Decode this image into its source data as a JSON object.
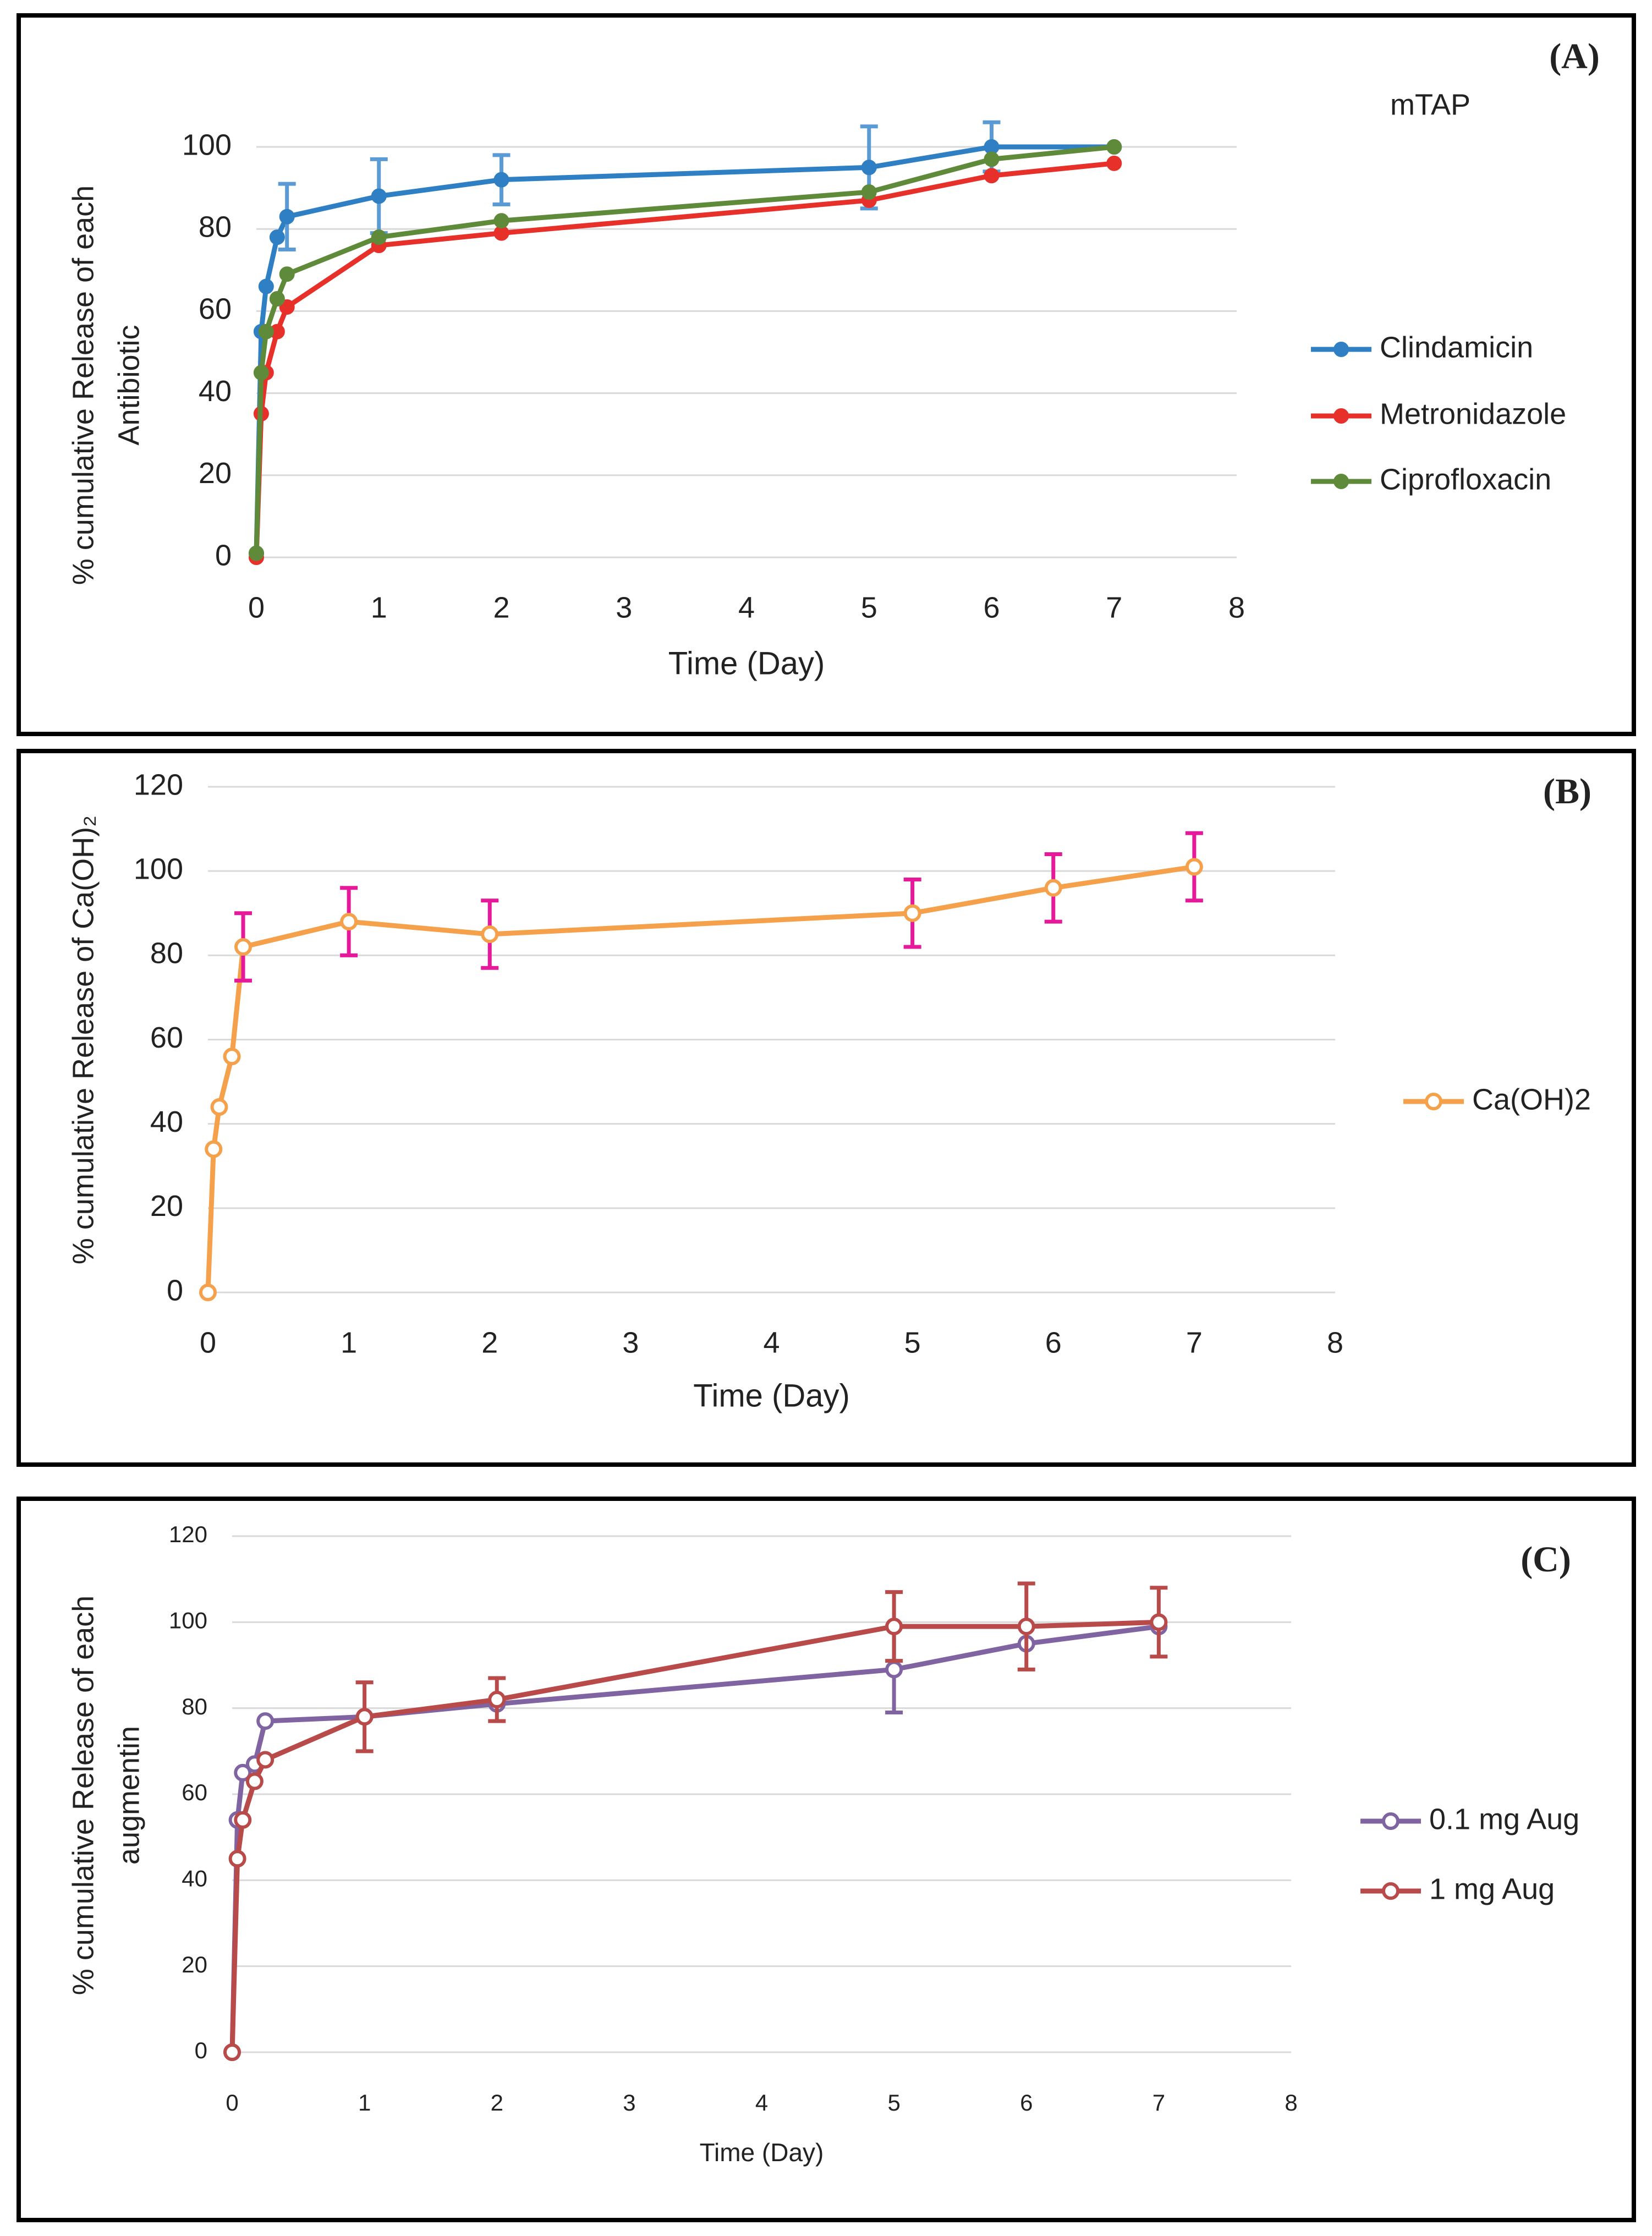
{
  "chart_data": [
    {
      "type": "line",
      "annotations": [
        "(A)",
        "mTAP"
      ],
      "xlabel": "Time (Day)",
      "ylabel": [
        "% cumulative Release of each",
        "Antibiotic"
      ],
      "x": [
        0,
        0.04,
        0.08,
        0.17,
        0.25,
        1,
        2,
        5,
        6,
        7
      ],
      "xlim": [
        0,
        8
      ],
      "xticks": [
        0,
        1,
        2,
        3,
        4,
        5,
        6,
        7,
        8
      ],
      "ylim": [
        0,
        100
      ],
      "yticks": [
        0,
        20,
        40,
        60,
        80,
        100
      ],
      "grid": true,
      "legend": "right",
      "markers": "filled",
      "error_color": "#5b9bd5",
      "series": [
        {
          "name": "Clindamicin",
          "color": "#2e7fc4",
          "values": [
            1,
            55,
            66,
            78,
            83,
            88,
            92,
            95,
            100,
            100
          ],
          "errors": [
            null,
            null,
            null,
            null,
            8,
            9,
            6,
            10,
            6,
            null
          ]
        },
        {
          "name": "Metronidazole",
          "color": "#e8302a",
          "values": [
            0,
            35,
            45,
            55,
            61,
            76,
            79,
            87,
            93,
            96
          ]
        },
        {
          "name": "Ciprofloxacin",
          "color": "#5e8a3a",
          "values": [
            1,
            45,
            55,
            63,
            69,
            78,
            82,
            89,
            97,
            100
          ]
        }
      ]
    },
    {
      "type": "line",
      "annotations": [
        "(B)"
      ],
      "xlabel": "Time (Day)",
      "ylabel": [
        "% cumulative Release of Ca(OH)₂"
      ],
      "x": [
        0,
        0.04,
        0.08,
        0.17,
        0.25,
        1,
        2,
        5,
        6,
        7
      ],
      "xlim": [
        0,
        8
      ],
      "xticks": [
        0,
        1,
        2,
        3,
        4,
        5,
        6,
        7,
        8
      ],
      "ylim": [
        0,
        120
      ],
      "yticks": [
        0,
        20,
        40,
        60,
        80,
        100,
        120
      ],
      "grid": true,
      "legend": "right",
      "markers": "open",
      "error_color": "#e6199b",
      "series": [
        {
          "name": "Ca(OH)2",
          "color": "#f5a04a",
          "values": [
            0,
            34,
            44,
            56,
            82,
            88,
            85,
            90,
            96,
            101
          ],
          "errors": [
            null,
            null,
            null,
            null,
            8,
            8,
            8,
            8,
            8,
            8
          ]
        }
      ]
    },
    {
      "type": "line",
      "annotations": [
        "(C)"
      ],
      "xlabel": "Time (Day)",
      "ylabel": [
        "% cumulative Release of each",
        "augmentin"
      ],
      "x": [
        0,
        0.04,
        0.08,
        0.17,
        0.25,
        1,
        2,
        5,
        6,
        7
      ],
      "xlim": [
        0,
        8
      ],
      "xticks": [
        0,
        1,
        2,
        3,
        4,
        5,
        6,
        7,
        8
      ],
      "ylim": [
        0,
        120
      ],
      "yticks": [
        0,
        20,
        40,
        60,
        80,
        100,
        120
      ],
      "grid": true,
      "legend": "right",
      "markers": "open",
      "error_color": null,
      "series": [
        {
          "name": "0.1 mg Aug",
          "color": "#8064a2",
          "values": [
            0,
            54,
            65,
            67,
            77,
            78,
            81,
            89,
            95,
            99
          ],
          "errors": [
            null,
            null,
            null,
            null,
            null,
            null,
            null,
            10,
            null,
            null
          ]
        },
        {
          "name": "1 mg Aug",
          "color": "#b84a4a",
          "values": [
            0,
            45,
            54,
            63,
            68,
            78,
            82,
            99,
            99,
            100
          ],
          "errors": [
            null,
            null,
            null,
            null,
            null,
            8,
            5,
            8,
            10,
            8
          ]
        }
      ]
    }
  ]
}
